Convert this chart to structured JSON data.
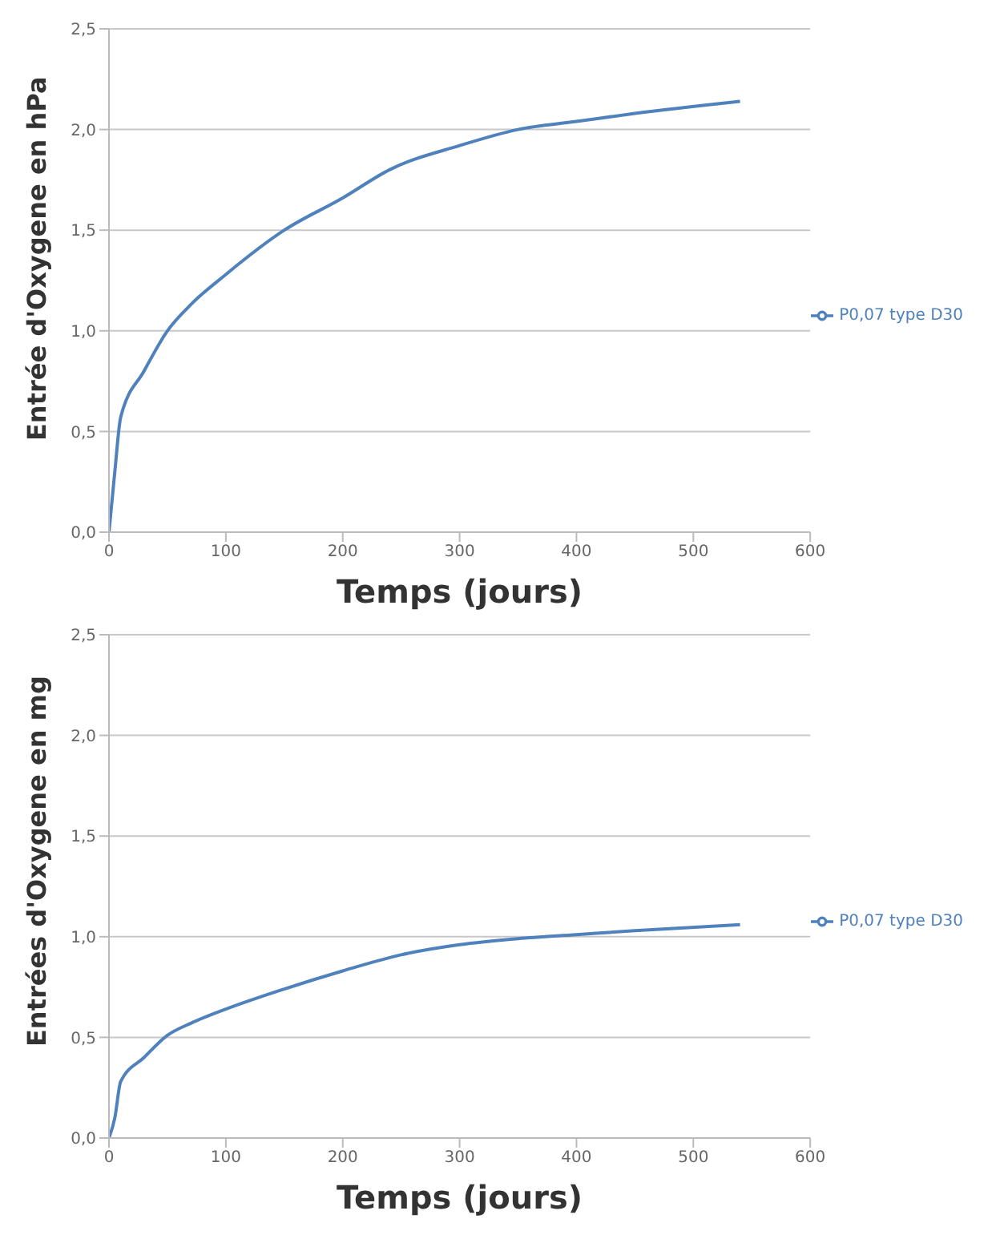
{
  "chart_data": [
    {
      "type": "line",
      "xlabel": "Temps (jours)",
      "ylabel": "Entrée d'Oxygene en hPa",
      "xlim": [
        0,
        600
      ],
      "xticks": [
        0,
        100,
        200,
        300,
        400,
        500,
        600
      ],
      "ylim": [
        0,
        2.5
      ],
      "yticks": [
        {
          "value": 0,
          "label": "0,0"
        },
        {
          "value": 0.5,
          "label": "0,5"
        },
        {
          "value": 1,
          "label": "1,0"
        },
        {
          "value": 1.5,
          "label": "1,5"
        },
        {
          "value": 2,
          "label": "2,0"
        },
        {
          "value": 2.5,
          "label": "2,5"
        }
      ],
      "grid": "y",
      "legend": "right",
      "marker": "none",
      "line_style": "solid",
      "series": [
        {
          "name": "P0,07 type D30",
          "color": "#4f81bd",
          "x": [
            0,
            5,
            10,
            30,
            50,
            70,
            100,
            150,
            200,
            240,
            300,
            350,
            400,
            450,
            540
          ],
          "values": [
            0,
            0.3,
            0.57,
            0.8,
            1.0,
            1.13,
            1.28,
            1.5,
            1.66,
            1.8,
            1.92,
            2.0,
            2.04,
            2.08,
            2.14
          ]
        }
      ]
    },
    {
      "type": "line",
      "xlabel": "Temps (jours)",
      "ylabel": "Entrées d'Oxygene en mg",
      "xlim": [
        0,
        600
      ],
      "xticks": [
        0,
        100,
        200,
        300,
        400,
        500,
        600
      ],
      "ylim": [
        0,
        2.5
      ],
      "yticks": [
        {
          "value": 0,
          "label": "0,0"
        },
        {
          "value": 0.5,
          "label": "0,5"
        },
        {
          "value": 1,
          "label": "1,0"
        },
        {
          "value": 1.5,
          "label": "1,5"
        },
        {
          "value": 2,
          "label": "2,0"
        },
        {
          "value": 2.5,
          "label": "2,5"
        }
      ],
      "grid": "y",
      "legend": "right",
      "marker": "none",
      "line_style": "solid",
      "series": [
        {
          "name": "P0,07 type D30",
          "color": "#4f81bd",
          "x": [
            0,
            5,
            10,
            30,
            50,
            70,
            100,
            150,
            200,
            250,
            300,
            350,
            400,
            450,
            540
          ],
          "values": [
            0,
            0.1,
            0.28,
            0.4,
            0.51,
            0.57,
            0.64,
            0.74,
            0.83,
            0.91,
            0.96,
            0.99,
            1.01,
            1.03,
            1.06
          ]
        }
      ]
    }
  ]
}
